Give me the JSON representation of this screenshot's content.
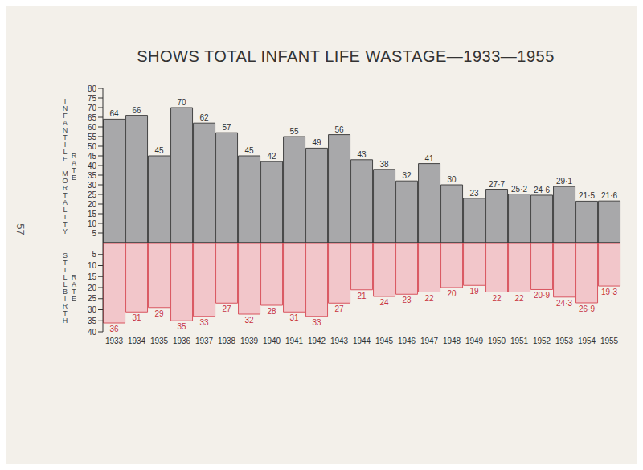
{
  "chart_data": [
    {
      "type": "bar",
      "title": "SHOWS TOTAL INFANT LIFE WASTAGE—1933—1955",
      "ylabel": "INFANTILE MORTALITY RATE",
      "categories": [
        "1933",
        "1934",
        "1935",
        "1936",
        "1937",
        "1938",
        "1939",
        "1940",
        "1941",
        "1942",
        "1943",
        "1944",
        "1945",
        "1946",
        "1947",
        "1948",
        "1949",
        "1950",
        "1951",
        "1952",
        "1953",
        "1954",
        "1955"
      ],
      "values": [
        64,
        66,
        45,
        70,
        62,
        57,
        45,
        42,
        55,
        49,
        56,
        43,
        38,
        32,
        41,
        30,
        23,
        27.7,
        25.2,
        24.6,
        29.1,
        21.5,
        21.6
      ],
      "value_labels": [
        "64",
        "66",
        "45",
        "70",
        "62",
        "57",
        "45",
        "42",
        "55",
        "49",
        "56",
        "43",
        "38",
        "32",
        "41",
        "30",
        "23",
        "27·7",
        "25·2",
        "24·6",
        "29·1",
        "21·5",
        "21·6"
      ],
      "color": "#a8a8aa",
      "ylim": [
        0,
        80
      ],
      "yticks": [
        5,
        10,
        15,
        20,
        25,
        30,
        35,
        40,
        45,
        50,
        55,
        60,
        65,
        70,
        75,
        80
      ],
      "data_labels": true,
      "tick_labels": "y"
    },
    {
      "type": "bar",
      "ylabel": "STILLBIRTH RATE",
      "categories": [
        "1933",
        "1934",
        "1935",
        "1936",
        "1937",
        "1938",
        "1939",
        "1940",
        "1941",
        "1942",
        "1943",
        "1944",
        "1945",
        "1946",
        "1947",
        "1948",
        "1949",
        "1950",
        "1951",
        "1952",
        "1953",
        "1954",
        "1955"
      ],
      "values": [
        36,
        31,
        29,
        35,
        33,
        27,
        32,
        28,
        31,
        33,
        27,
        21,
        24,
        23,
        22,
        20,
        19,
        22,
        22,
        20.9,
        24.3,
        26.9,
        19.3
      ],
      "value_labels": [
        "36",
        "31",
        "29",
        "35",
        "33",
        "27",
        "32",
        "28",
        "31",
        "33",
        "27",
        "21",
        "24",
        "23",
        "22",
        "20",
        "19",
        "22",
        "22",
        "20·9",
        "24·3",
        "26·9",
        "19·3"
      ],
      "color": "#f2c6ca",
      "ylim": [
        0,
        40
      ],
      "yticks": [
        5,
        10,
        15,
        20,
        25,
        30,
        35,
        40
      ],
      "data_labels": true
    }
  ],
  "page_number": "57"
}
